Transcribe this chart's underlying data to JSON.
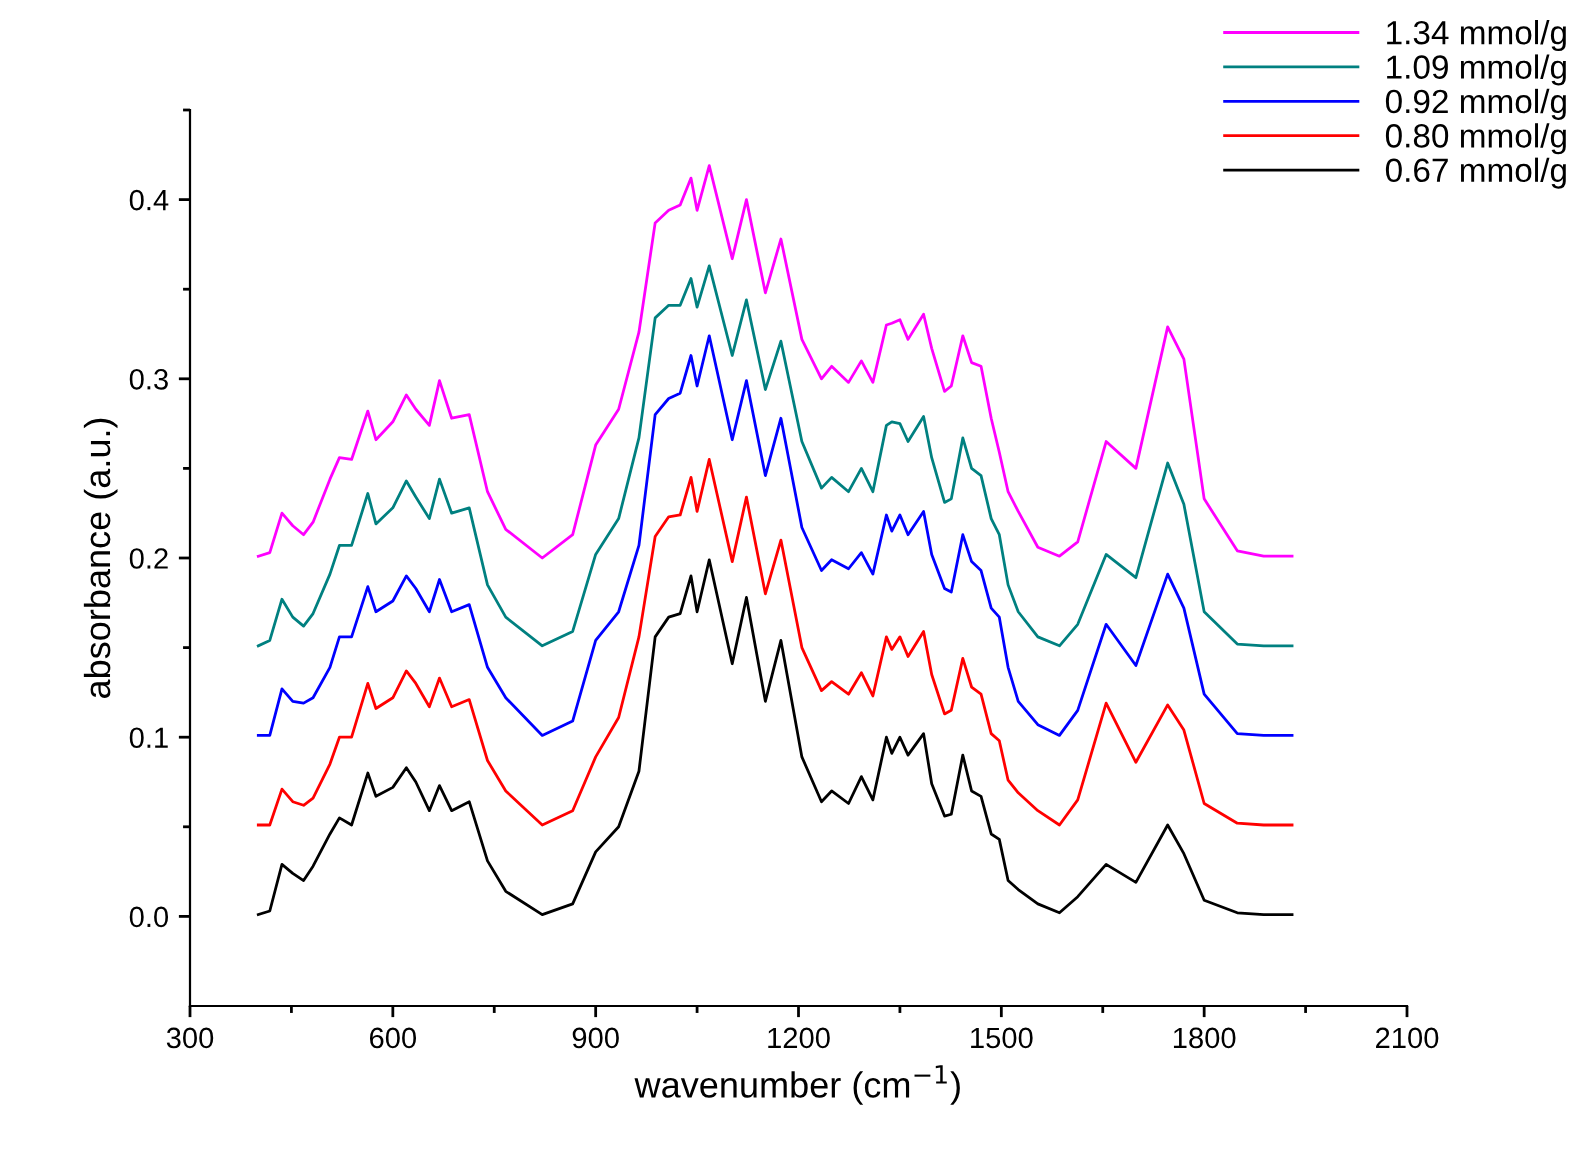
{
  "chart_data": {
    "type": "line",
    "xlabel": "wavenumber (cm$^{−1}$)",
    "ylabel": "absorbance (a.u.)",
    "xlim": [
      300,
      2100
    ],
    "ylim": [
      -0.05,
      0.45
    ],
    "xticks": [
      300,
      {
        "value": 450,
        "label": null
      },
      600,
      {
        "value": 750,
        "label": null
      },
      900,
      {
        "value": 1050,
        "label": null
      },
      1200,
      {
        "value": 1350,
        "label": null
      },
      1500,
      {
        "value": 1650,
        "label": null
      },
      1800,
      {
        "value": 1950,
        "label": null
      },
      2100
    ],
    "yticks": [
      {
        "value": 0,
        "label": "0.0"
      },
      {
        "value": 0.05,
        "label": null
      },
      0.1,
      {
        "value": 0.15,
        "label": null
      },
      0.2,
      {
        "value": 0.25,
        "label": null
      },
      0.3,
      {
        "value": 0.35,
        "label": null
      },
      0.4,
      {
        "value": 0.45,
        "label": null
      }
    ],
    "grid": false,
    "legend": "top right",
    "marker": "none",
    "line_style": "solid",
    "x": [
      401,
      418,
      436,
      452,
      468,
      482,
      507,
      521,
      539,
      563,
      575,
      600,
      620,
      634,
      654,
      669,
      687,
      713,
      740,
      767,
      821,
      866,
      900,
      934,
      964,
      988,
      1008,
      1025,
      1041,
      1050,
      1068,
      1102,
      1123,
      1151,
      1174,
      1205,
      1234,
      1249,
      1274,
      1293,
      1310,
      1330,
      1338,
      1350,
      1362,
      1385,
      1397,
      1416,
      1426,
      1443,
      1456,
      1470,
      1485,
      1497,
      1510,
      1525,
      1554,
      1586,
      1613,
      1655,
      1699,
      1746,
      1770,
      1800,
      1849,
      1888,
      1930
    ],
    "series": [
      {
        "name": "1.34 mmol/g",
        "color": "#ff00ff",
        "values": [
          0.201,
          0.203,
          0.225,
          0.218,
          0.213,
          0.22,
          0.244,
          0.256,
          0.255,
          0.282,
          0.266,
          0.276,
          0.291,
          0.283,
          0.274,
          0.299,
          0.278,
          0.28,
          0.237,
          0.216,
          0.2,
          0.213,
          0.263,
          0.283,
          0.326,
          0.387,
          0.394,
          0.397,
          0.412,
          0.394,
          0.419,
          0.367,
          0.4,
          0.348,
          0.378,
          0.322,
          0.3,
          0.307,
          0.298,
          0.31,
          0.298,
          0.33,
          0.331,
          0.333,
          0.322,
          0.336,
          0.317,
          0.293,
          0.296,
          0.324,
          0.309,
          0.307,
          0.278,
          0.259,
          0.237,
          0.226,
          0.206,
          0.201,
          0.209,
          0.265,
          0.25,
          0.329,
          0.311,
          0.233,
          0.204,
          0.201,
          0.201
        ]
      },
      {
        "name": "1.09 mmol/g",
        "color": "#008080",
        "values": [
          0.151,
          0.154,
          0.177,
          0.167,
          0.162,
          0.169,
          0.191,
          0.207,
          0.207,
          0.236,
          0.219,
          0.228,
          0.243,
          0.234,
          0.222,
          0.244,
          0.225,
          0.228,
          0.185,
          0.167,
          0.151,
          0.159,
          0.202,
          0.222,
          0.267,
          0.334,
          0.341,
          0.341,
          0.356,
          0.34,
          0.363,
          0.313,
          0.344,
          0.294,
          0.321,
          0.265,
          0.239,
          0.245,
          0.237,
          0.25,
          0.237,
          0.274,
          0.276,
          0.275,
          0.265,
          0.279,
          0.256,
          0.231,
          0.233,
          0.267,
          0.25,
          0.246,
          0.222,
          0.213,
          0.185,
          0.17,
          0.156,
          0.151,
          0.163,
          0.202,
          0.189,
          0.253,
          0.23,
          0.17,
          0.152,
          0.151,
          0.151
        ]
      },
      {
        "name": "0.92 mmol/g",
        "color": "#0000ff",
        "values": [
          0.101,
          0.101,
          0.127,
          0.12,
          0.119,
          0.122,
          0.139,
          0.156,
          0.156,
          0.184,
          0.17,
          0.176,
          0.19,
          0.183,
          0.17,
          0.188,
          0.17,
          0.174,
          0.139,
          0.122,
          0.101,
          0.109,
          0.154,
          0.17,
          0.207,
          0.28,
          0.289,
          0.292,
          0.313,
          0.296,
          0.324,
          0.266,
          0.299,
          0.246,
          0.278,
          0.217,
          0.193,
          0.199,
          0.194,
          0.203,
          0.191,
          0.224,
          0.215,
          0.224,
          0.213,
          0.226,
          0.202,
          0.183,
          0.181,
          0.213,
          0.198,
          0.193,
          0.172,
          0.167,
          0.139,
          0.12,
          0.107,
          0.101,
          0.115,
          0.163,
          0.14,
          0.191,
          0.172,
          0.124,
          0.102,
          0.101,
          0.101
        ]
      },
      {
        "name": "0.80 mmol/g",
        "color": "#ff0000",
        "values": [
          0.051,
          0.051,
          0.071,
          0.064,
          0.062,
          0.066,
          0.085,
          0.1,
          0.1,
          0.13,
          0.116,
          0.122,
          0.137,
          0.13,
          0.117,
          0.133,
          0.117,
          0.121,
          0.087,
          0.07,
          0.051,
          0.059,
          0.089,
          0.111,
          0.156,
          0.212,
          0.223,
          0.224,
          0.245,
          0.226,
          0.255,
          0.198,
          0.234,
          0.18,
          0.21,
          0.15,
          0.126,
          0.131,
          0.124,
          0.136,
          0.123,
          0.156,
          0.149,
          0.156,
          0.145,
          0.159,
          0.135,
          0.113,
          0.115,
          0.144,
          0.128,
          0.124,
          0.102,
          0.098,
          0.076,
          0.069,
          0.059,
          0.051,
          0.065,
          0.119,
          0.086,
          0.118,
          0.104,
          0.063,
          0.052,
          0.051,
          0.051
        ]
      },
      {
        "name": "0.67 mmol/g",
        "color": "#000000",
        "values": [
          0.001,
          0.003,
          0.029,
          0.024,
          0.02,
          0.028,
          0.046,
          0.055,
          0.051,
          0.08,
          0.067,
          0.072,
          0.083,
          0.075,
          0.059,
          0.073,
          0.059,
          0.064,
          0.031,
          0.014,
          0.001,
          0.007,
          0.036,
          0.05,
          0.081,
          0.156,
          0.167,
          0.169,
          0.19,
          0.17,
          0.199,
          0.141,
          0.178,
          0.12,
          0.154,
          0.089,
          0.064,
          0.07,
          0.063,
          0.078,
          0.065,
          0.1,
          0.091,
          0.1,
          0.09,
          0.102,
          0.074,
          0.056,
          0.057,
          0.09,
          0.07,
          0.067,
          0.046,
          0.043,
          0.02,
          0.015,
          0.007,
          0.002,
          0.011,
          0.029,
          0.019,
          0.051,
          0.035,
          0.009,
          0.002,
          0.001,
          0.001
        ]
      }
    ]
  }
}
